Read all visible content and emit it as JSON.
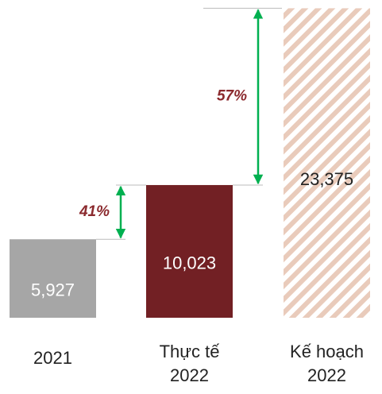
{
  "chart_data": {
    "type": "bar",
    "categories": [
      "2021",
      "Thực tế 2022",
      "Kế hoạch 2022"
    ],
    "values": [
      5927,
      10023,
      23375
    ],
    "value_labels": [
      "5,927",
      "10,023",
      "23,375"
    ],
    "colors": [
      "#a6a6a6",
      "#722024",
      "#e9cbbb"
    ],
    "ylim": [
      0,
      24000
    ],
    "annotations": [
      "41%",
      "57%"
    ]
  }
}
